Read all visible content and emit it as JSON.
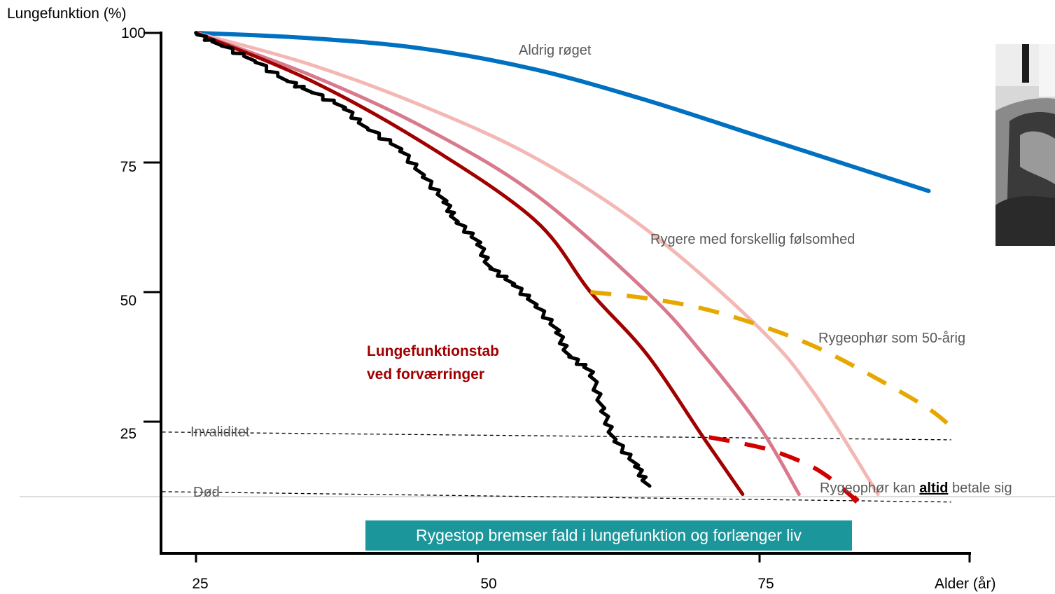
{
  "chart_data": {
    "type": "line",
    "ylabel": "Lungefunktion (%)",
    "xlabel": "Alder (år)",
    "yticks": [
      "100",
      "75",
      "50",
      "25"
    ],
    "xticks": [
      "25",
      "50",
      "75"
    ],
    "xlim": [
      22,
      92
    ],
    "ylim": [
      0,
      100
    ],
    "series": [
      {
        "key": "never",
        "color": "#0070c0",
        "style": "solid",
        "x": [
          25,
          35,
          45,
          55,
          65,
          75,
          85,
          90
        ],
        "y": [
          100,
          99,
          97,
          93,
          87,
          80,
          73,
          69.5
        ]
      },
      {
        "key": "smoker_mild",
        "color": "#f4b8b4",
        "style": "solid",
        "x": [
          25,
          35,
          45,
          55,
          65,
          75,
          80,
          85.5
        ],
        "y": [
          100,
          94,
          86,
          76,
          62,
          43,
          30,
          11
        ]
      },
      {
        "key": "smoker_moderate",
        "color": "#d9798c",
        "style": "solid",
        "x": [
          25,
          35,
          45,
          55,
          65,
          70,
          75,
          78.5
        ],
        "y": [
          100,
          92,
          82,
          69,
          50,
          38,
          24,
          11
        ]
      },
      {
        "key": "smoker_sensitive",
        "color": "#a00000",
        "style": "solid",
        "x": [
          25,
          35,
          45,
          55,
          60,
          65,
          70,
          73.5
        ],
        "y": [
          100,
          91,
          79,
          64,
          50,
          38,
          22,
          11
        ]
      },
      {
        "key": "exacerbations",
        "color": "#000000",
        "style": "jagged",
        "x": [
          25,
          27,
          30,
          33,
          35,
          38,
          40,
          43,
          45,
          47,
          48,
          50,
          51,
          53,
          55,
          57,
          58,
          60,
          61,
          62,
          64,
          65
        ],
        "y": [
          100,
          98,
          95,
          91,
          89,
          86,
          82,
          78,
          73,
          68,
          64,
          60,
          55,
          52,
          48,
          43,
          38,
          35,
          28,
          22,
          17,
          13
        ]
      },
      {
        "key": "quit_50",
        "color": "#e6a800",
        "style": "dashed",
        "x": [
          60,
          65,
          70,
          75,
          80,
          85,
          90,
          92.5
        ],
        "y": [
          50,
          48.8,
          46.8,
          43.6,
          39.4,
          33.8,
          27.5,
          23
        ]
      },
      {
        "key": "quit_any",
        "color": "#d00000",
        "style": "dashed",
        "x": [
          70.5,
          73,
          76,
          79,
          81,
          83.5
        ],
        "y": [
          22,
          21,
          19.5,
          17,
          14.5,
          10
        ]
      }
    ],
    "reference_lines": [
      {
        "key": "disability",
        "label": "Invaliditet",
        "x": [
          22,
          92
        ],
        "y": [
          23,
          21.5
        ]
      },
      {
        "key": "death",
        "label": "Død",
        "x": [
          22,
          92
        ],
        "y": [
          11.5,
          9.5
        ]
      }
    ]
  },
  "annotations": {
    "never_smoked": "Aldrig røget",
    "smokers_sensitivity": "Rygere med forskellig følsomhed",
    "quit_at_50": "Rygeophør som 50-årig",
    "quit_always_pre": "Rygeophør kan ",
    "quit_always_bold": "altid",
    "quit_always_post": " betale sig",
    "loss_exacerbations": "Lungefunktionstab ved forværringer",
    "disability": "Invaliditet",
    "death": "Død"
  },
  "banner": {
    "text": "Rygestop bremser fald i lungefunktion og forlænger liv",
    "color": "#1b969b"
  }
}
